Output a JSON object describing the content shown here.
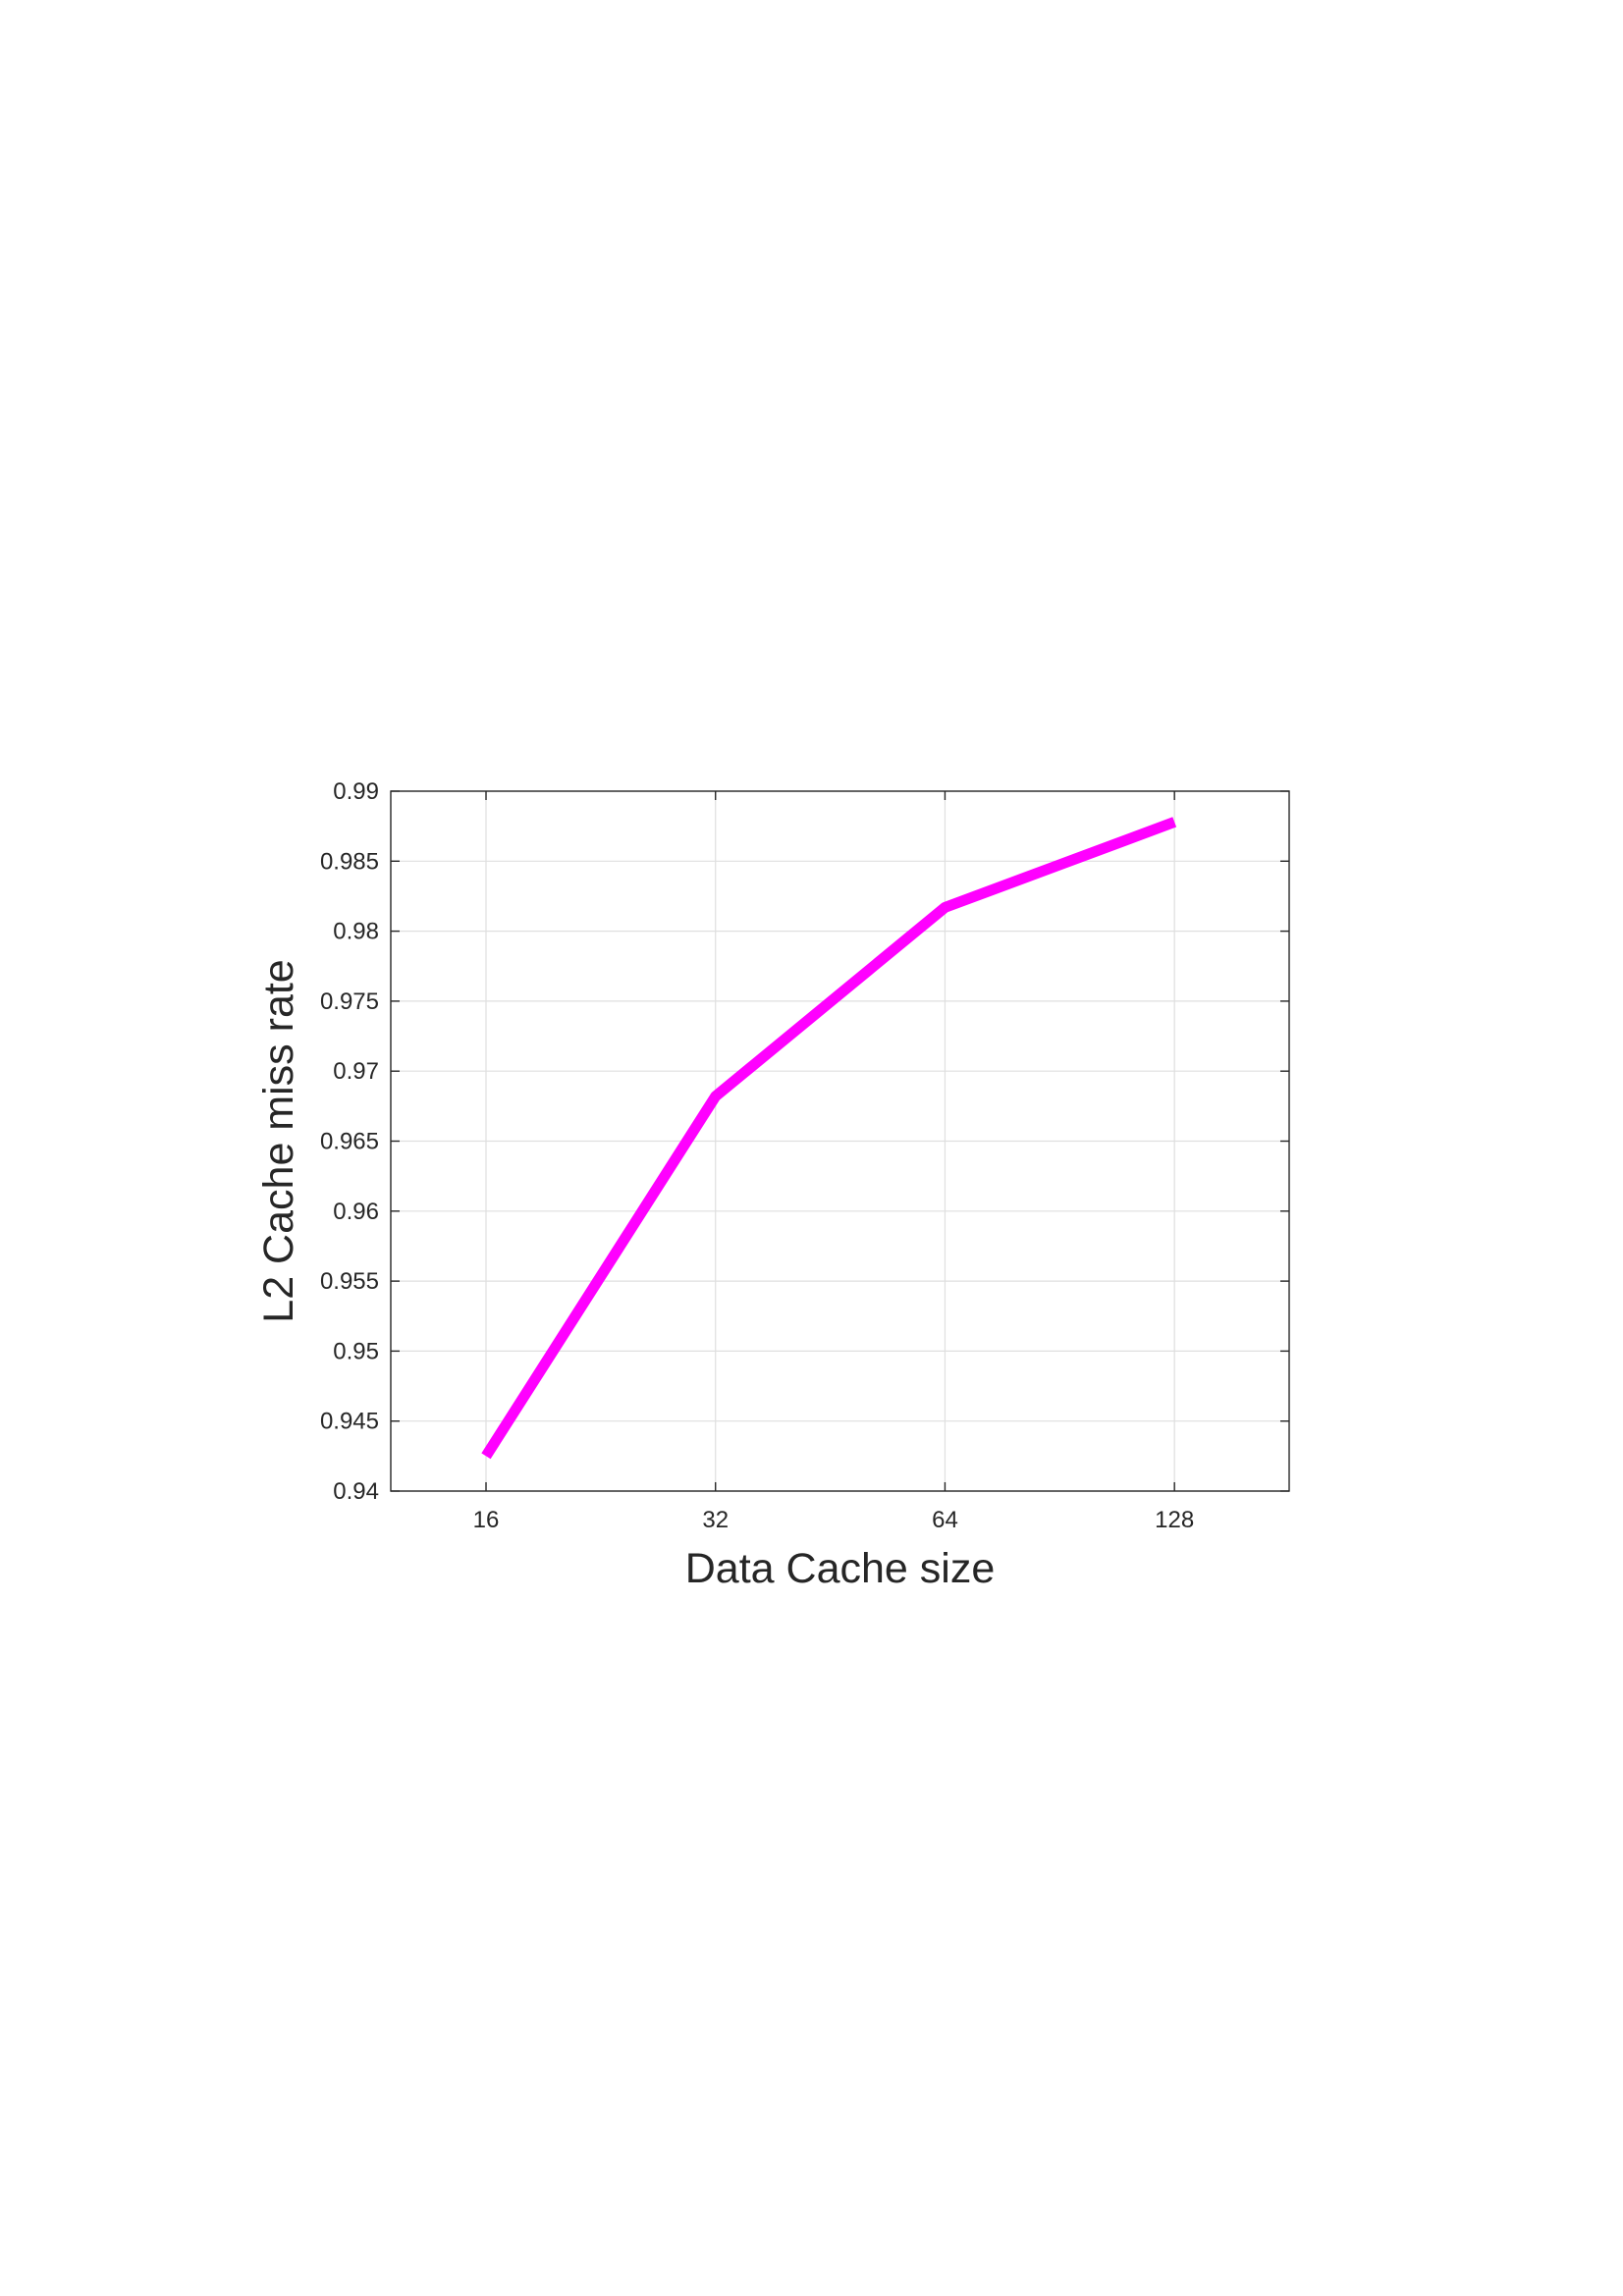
{
  "colors": {
    "series": "#ff00ff",
    "axis": "#262626",
    "grid": "#dfdfdf",
    "background": "#ffffff"
  },
  "chart_data": {
    "type": "line",
    "title": "",
    "xlabel": "Data Cache size",
    "ylabel": "L2 Cache miss rate",
    "x_scale": "log2",
    "x": [
      16,
      32,
      64,
      128
    ],
    "x_tick_values": [
      16,
      32,
      64,
      128
    ],
    "x_tick_labels": [
      "16",
      "32",
      "64",
      "128"
    ],
    "xlim": [
      12,
      181
    ],
    "y_tick_values": [
      0.94,
      0.945,
      0.95,
      0.955,
      0.96,
      0.965,
      0.97,
      0.975,
      0.98,
      0.985,
      0.99
    ],
    "y_tick_labels": [
      "0.94",
      "0.945",
      "0.95",
      "0.955",
      "0.96",
      "0.965",
      "0.97",
      "0.975",
      "0.98",
      "0.985",
      "0.99"
    ],
    "ylim": [
      0.94,
      0.99
    ],
    "grid": true,
    "legend": false,
    "series": [
      {
        "values": [
          0.9425,
          0.9682,
          0.9817,
          0.9878
        ]
      }
    ]
  }
}
